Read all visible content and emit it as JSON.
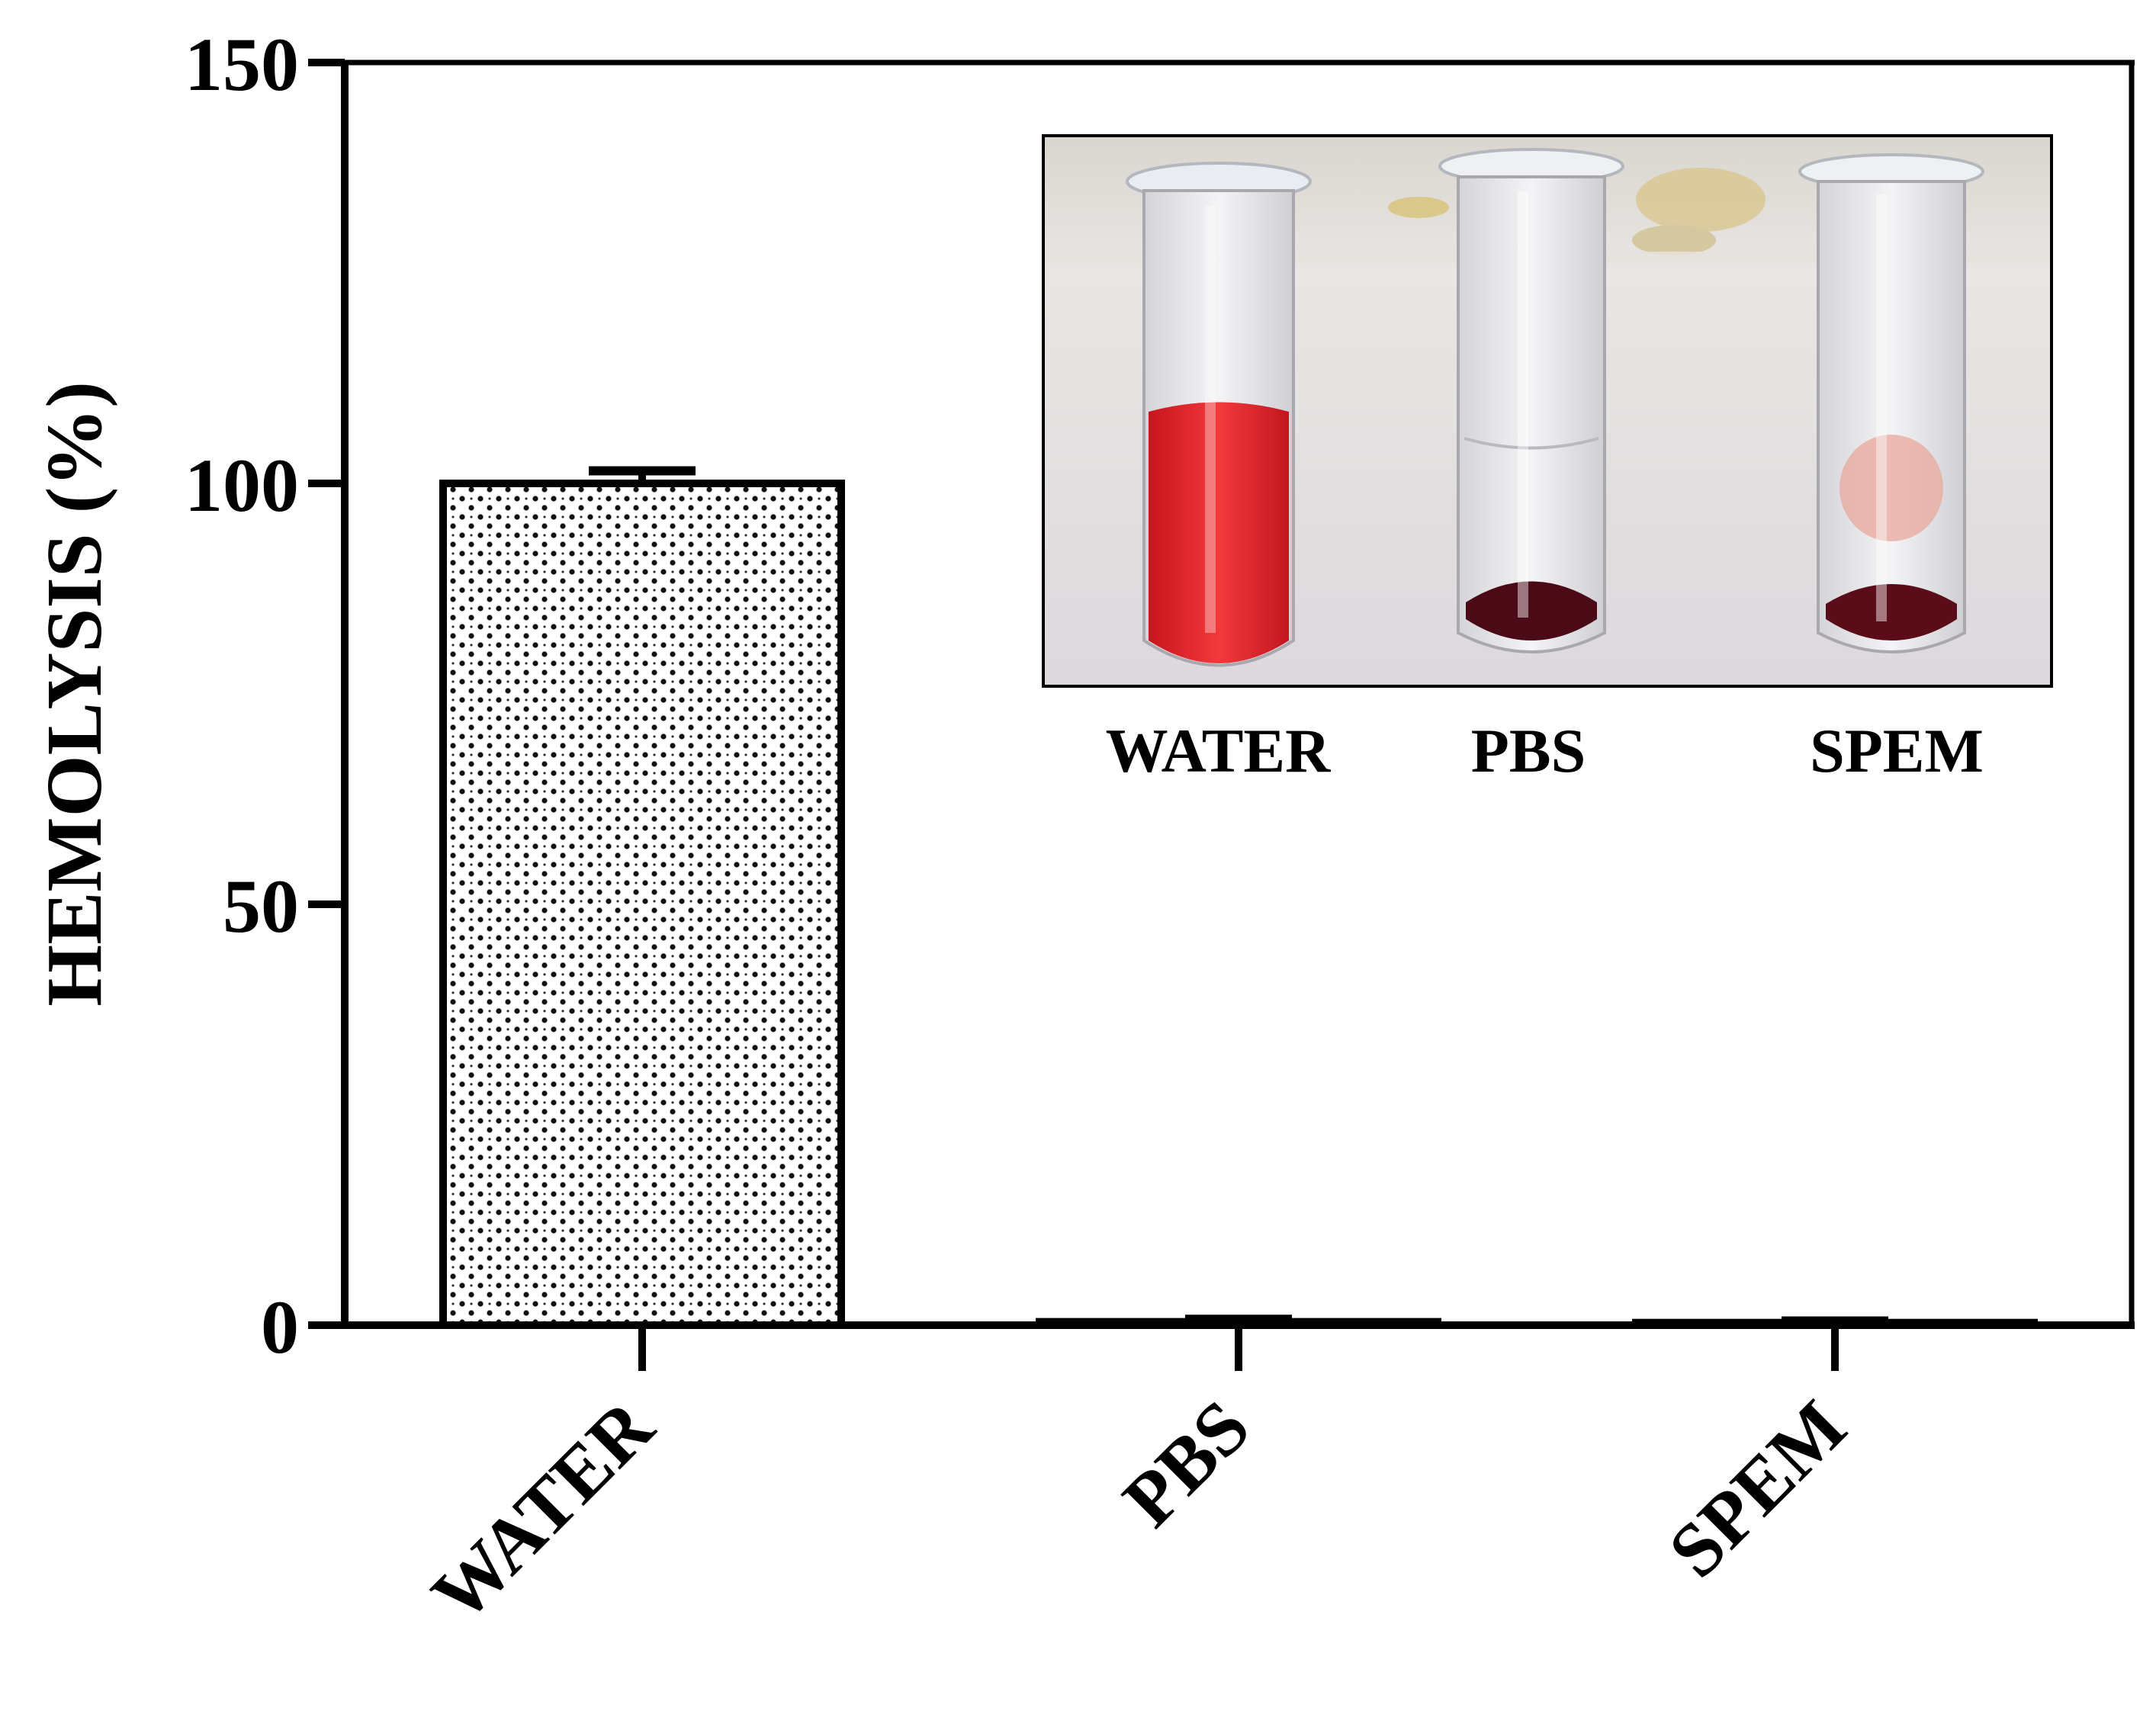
{
  "chart_data": {
    "type": "bar",
    "ylabel": "HEMOLYSIS (%)",
    "xlabel": "",
    "ylim": [
      0,
      150
    ],
    "yticks": [
      0,
      50,
      100,
      150
    ],
    "categories": [
      "WATER",
      "PBS",
      "SPEM"
    ],
    "values": [
      100,
      0.4,
      0.3
    ],
    "errors": [
      1.5,
      0.3,
      0.2
    ],
    "grid": false,
    "bar_pattern": "dotted",
    "bar_color": "#ffffff",
    "edge_color": "#000000",
    "inset": {
      "type": "photo",
      "tube_contents": [
        "red-lysed",
        "clear-with-pellet",
        "clear-with-pellet"
      ],
      "labels": [
        "WATER",
        "PBS",
        "SPEM"
      ]
    }
  }
}
